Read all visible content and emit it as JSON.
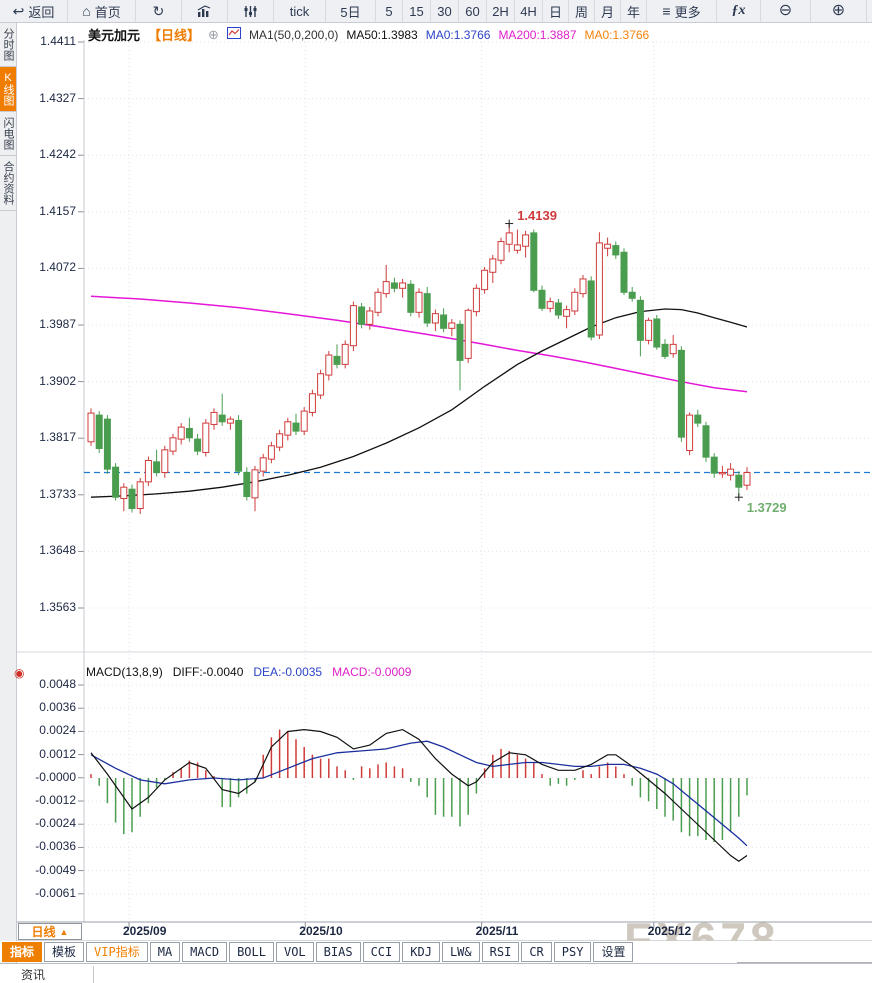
{
  "icons": {
    "add": "⊕",
    "up_triangle": "▲",
    "indicator_dot": "◉",
    "back": "↩",
    "home": "⌂",
    "refresh": "↻",
    "menu": "≡",
    "zoom_out": "⊖",
    "zoom_in": "⊕"
  },
  "toolbar": {
    "items": [
      {
        "id": "back",
        "icon": "back",
        "label": "返回"
      },
      {
        "id": "home",
        "icon": "home",
        "label": "首页"
      },
      {
        "id": "refresh",
        "icon": "refresh",
        "label": ""
      },
      {
        "id": "chart-style",
        "icon": "bar-chart",
        "label": ""
      },
      {
        "id": "indicators",
        "icon": "sliders",
        "label": ""
      },
      {
        "id": "tf-tick",
        "label": "tick"
      },
      {
        "id": "tf-5d",
        "label": "5日"
      },
      {
        "id": "tf-5",
        "label": "5"
      },
      {
        "id": "tf-15",
        "label": "15"
      },
      {
        "id": "tf-30",
        "label": "30"
      },
      {
        "id": "tf-60",
        "label": "60"
      },
      {
        "id": "tf-2h",
        "label": "2H"
      },
      {
        "id": "tf-4h",
        "label": "4H"
      },
      {
        "id": "tf-day",
        "label": "日"
      },
      {
        "id": "tf-week",
        "label": "周"
      },
      {
        "id": "tf-month",
        "label": "月"
      },
      {
        "id": "tf-year",
        "label": "年"
      },
      {
        "id": "more",
        "icon": "menu",
        "label": "更多"
      },
      {
        "id": "fx",
        "label": "ƒx"
      },
      {
        "id": "zoom-out",
        "icon": "zoom_out",
        "label": ""
      },
      {
        "id": "zoom-in",
        "icon": "zoom_in",
        "label": ""
      }
    ]
  },
  "sidebar": {
    "items": [
      {
        "id": "fenshi",
        "label": "分时图",
        "active": false
      },
      {
        "id": "kline",
        "label": "K线图",
        "active": true
      },
      {
        "id": "shandian",
        "label": "闪电图",
        "active": false
      },
      {
        "id": "heyue",
        "label": "合约资料",
        "active": false
      }
    ]
  },
  "chart_header": {
    "symbol": "美元加元",
    "period": "【日线】",
    "ma_settings": "MA1(50,0,200,0)",
    "ma50": "MA50:1.3983",
    "ma0_blue": "MA0:1.3766",
    "ma200": "MA200:1.3887",
    "ma0_orange": "MA0:1.3766"
  },
  "macd_header": {
    "title": "MACD(13,8,9)",
    "diff": "DIFF:-0.0040",
    "dea": "DEA:-0.0035",
    "macd": "MACD:-0.0009"
  },
  "bottom": {
    "period_selector": "日线",
    "months": [
      "2025/09",
      "2025/10",
      "2025/11",
      "2025/12"
    ],
    "tabs": [
      {
        "id": "zhibiao",
        "label": "指标",
        "active": true
      },
      {
        "id": "moban",
        "label": "模板"
      },
      {
        "id": "vip",
        "label": "VIP指标",
        "vip": true
      },
      {
        "id": "ma",
        "label": "MA"
      },
      {
        "id": "macd",
        "label": "MACD"
      },
      {
        "id": "boll",
        "label": "BOLL"
      },
      {
        "id": "vol",
        "label": "VOL"
      },
      {
        "id": "bias",
        "label": "BIAS"
      },
      {
        "id": "cci",
        "label": "CCI"
      },
      {
        "id": "kdj",
        "label": "KDJ"
      },
      {
        "id": "lw",
        "label": "LW&"
      },
      {
        "id": "rsi",
        "label": "RSI"
      },
      {
        "id": "cr",
        "label": "CR"
      },
      {
        "id": "psy",
        "label": "PSY"
      },
      {
        "id": "shezhi",
        "label": "设置"
      }
    ],
    "news_tab": "资讯"
  },
  "watermark": "FX678",
  "colors": {
    "candle_up": "#cf3b3b",
    "candle_down": "#4a9d4f",
    "ma50_line": "#111111",
    "ma200_line": "#e416d8",
    "diff_line": "#111111",
    "dea_line": "#1b2f9e",
    "price_line": "#1f7ad4",
    "accent_orange": "#f07c00",
    "annotation_high": "#cf3b3b",
    "annotation_low": "#6fae6f"
  },
  "chart_data": {
    "type": "candlestick",
    "title": "美元加元 日线 (USD/CAD daily)",
    "price_axis_labels": [
      "1.4411",
      "1.4327",
      "1.4242",
      "1.4157",
      "1.4072",
      "1.3987",
      "1.3902",
      "1.3817",
      "1.3733",
      "1.3648",
      "1.3563"
    ],
    "macd_axis_labels": [
      "0.0048",
      "0.0036",
      "0.0024",
      "0.0012",
      "-0.0000",
      "-0.0012",
      "-0.0024",
      "-0.0036",
      "-0.0049",
      "-0.0061"
    ],
    "x_months": [
      "2025/09",
      "2025/10",
      "2025/11",
      "2025/12"
    ],
    "month_start_indices": [
      5,
      26.5,
      48,
      69
    ],
    "current_price": 1.3766,
    "high_annotation": {
      "index": 51,
      "price": 1.4139,
      "label": "1.4139"
    },
    "low_annotation": {
      "index": 79,
      "price": 1.3729,
      "label": "1.3729"
    },
    "candles": [
      [
        1.3812,
        1.3862,
        1.3806,
        1.3855
      ],
      [
        1.3852,
        1.3858,
        1.3795,
        1.3802
      ],
      [
        1.3846,
        1.3852,
        1.3764,
        1.3771
      ],
      [
        1.3774,
        1.378,
        1.3724,
        1.3729
      ],
      [
        1.3727,
        1.375,
        1.3708,
        1.3744
      ],
      [
        1.3741,
        1.3748,
        1.3706,
        1.3712
      ],
      [
        1.3712,
        1.3758,
        1.3704,
        1.3752
      ],
      [
        1.3752,
        1.379,
        1.3746,
        1.3784
      ],
      [
        1.3782,
        1.38,
        1.376,
        1.3766
      ],
      [
        1.3766,
        1.3806,
        1.3758,
        1.38
      ],
      [
        1.3798,
        1.3824,
        1.3792,
        1.3818
      ],
      [
        1.3816,
        1.384,
        1.3808,
        1.3834
      ],
      [
        1.3832,
        1.3848,
        1.3812,
        1.3818
      ],
      [
        1.3816,
        1.3824,
        1.3792,
        1.3798
      ],
      [
        1.3796,
        1.3846,
        1.379,
        1.384
      ],
      [
        1.3838,
        1.3862,
        1.383,
        1.3856
      ],
      [
        1.3852,
        1.3884,
        1.3836,
        1.3842
      ],
      [
        1.384,
        1.385,
        1.383,
        1.3846
      ],
      [
        1.3844,
        1.3852,
        1.3762,
        1.3768
      ],
      [
        1.3766,
        1.3774,
        1.3724,
        1.373
      ],
      [
        1.3728,
        1.3776,
        1.3708,
        1.377
      ],
      [
        1.3768,
        1.3794,
        1.376,
        1.3788
      ],
      [
        1.3786,
        1.3812,
        1.378,
        1.3806
      ],
      [
        1.3804,
        1.383,
        1.3798,
        1.3824
      ],
      [
        1.3822,
        1.3848,
        1.3814,
        1.3842
      ],
      [
        1.384,
        1.3854,
        1.3822,
        1.3828
      ],
      [
        1.3828,
        1.3864,
        1.3822,
        1.3858
      ],
      [
        1.3856,
        1.389,
        1.385,
        1.3884
      ],
      [
        1.3882,
        1.392,
        1.3876,
        1.3914
      ],
      [
        1.3912,
        1.3948,
        1.3904,
        1.3942
      ],
      [
        1.394,
        1.3958,
        1.3922,
        1.3928
      ],
      [
        1.3928,
        1.3964,
        1.3922,
        1.3958
      ],
      [
        1.3956,
        1.4022,
        1.3948,
        1.4016
      ],
      [
        1.4014,
        1.402,
        1.3982,
        1.3988
      ],
      [
        1.3988,
        1.4014,
        1.398,
        1.4008
      ],
      [
        1.4006,
        1.4042,
        1.4,
        1.4036
      ],
      [
        1.4034,
        1.4077,
        1.4028,
        1.4052
      ],
      [
        1.405,
        1.4058,
        1.4036,
        1.4042
      ],
      [
        1.4042,
        1.4056,
        1.4028,
        1.405
      ],
      [
        1.4048,
        1.4054,
        1.4,
        1.4006
      ],
      [
        1.4006,
        1.4042,
        1.3998,
        1.4036
      ],
      [
        1.4034,
        1.4044,
        1.3984,
        1.399
      ],
      [
        1.399,
        1.401,
        1.3978,
        1.4004
      ],
      [
        1.4002,
        1.4012,
        1.3976,
        1.3982
      ],
      [
        1.3982,
        1.3996,
        1.397,
        1.399
      ],
      [
        1.3988,
        1.3994,
        1.3889,
        1.3934
      ],
      [
        1.3937,
        1.4012,
        1.393,
        1.4009
      ],
      [
        1.4007,
        1.4048,
        1.4,
        1.4042
      ],
      [
        1.404,
        1.4074,
        1.4034,
        1.4069
      ],
      [
        1.4066,
        1.4092,
        1.405,
        1.4086
      ],
      [
        1.4084,
        1.4118,
        1.4078,
        1.4112
      ],
      [
        1.4108,
        1.4139,
        1.4096,
        1.4125
      ],
      [
        1.4099,
        1.413,
        1.4094,
        1.4107
      ],
      [
        1.4105,
        1.4128,
        1.4088,
        1.4122
      ],
      [
        1.4125,
        1.413,
        1.4036,
        1.4039
      ],
      [
        1.4039,
        1.4046,
        1.4008,
        1.4012
      ],
      [
        1.4012,
        1.4028,
        1.4006,
        1.4022
      ],
      [
        1.402,
        1.4026,
        1.3996,
        1.4002
      ],
      [
        1.4,
        1.4016,
        1.3982,
        1.401
      ],
      [
        1.4008,
        1.4042,
        1.4002,
        1.4036
      ],
      [
        1.4034,
        1.4062,
        1.4028,
        1.4056
      ],
      [
        1.4053,
        1.406,
        1.3964,
        1.3969
      ],
      [
        1.3972,
        1.4126,
        1.3966,
        1.411
      ],
      [
        1.4102,
        1.4118,
        1.409,
        1.4108
      ],
      [
        1.4106,
        1.4112,
        1.4086,
        1.4092
      ],
      [
        1.4096,
        1.4102,
        1.4032,
        1.4036
      ],
      [
        1.4036,
        1.4044,
        1.4022,
        1.4027
      ],
      [
        1.4024,
        1.403,
        1.394,
        1.3964
      ],
      [
        1.3964,
        1.3998,
        1.3958,
        1.3994
      ],
      [
        1.3996,
        1.4002,
        1.395,
        1.3954
      ],
      [
        1.3958,
        1.3966,
        1.3936,
        1.394
      ],
      [
        1.3944,
        1.3972,
        1.3938,
        1.3958
      ],
      [
        1.3949,
        1.3955,
        1.3812,
        1.3819
      ],
      [
        1.3799,
        1.3856,
        1.3792,
        1.3852
      ],
      [
        1.3852,
        1.386,
        1.3834,
        1.384
      ],
      [
        1.3836,
        1.3842,
        1.3782,
        1.3789
      ],
      [
        1.3789,
        1.3795,
        1.3758,
        1.3765
      ],
      [
        1.3764,
        1.3776,
        1.3758,
        1.3766
      ],
      [
        1.3762,
        1.378,
        1.3754,
        1.3771
      ],
      [
        1.3762,
        1.3768,
        1.3729,
        1.3744
      ],
      [
        1.3747,
        1.3774,
        1.374,
        1.3766
      ]
    ],
    "ma50": [
      [
        0,
        1.3729
      ],
      [
        4,
        1.3731
      ],
      [
        8,
        1.3734
      ],
      [
        12,
        1.3738
      ],
      [
        16,
        1.3744
      ],
      [
        20,
        1.3752
      ],
      [
        24,
        1.3762
      ],
      [
        28,
        1.3774
      ],
      [
        32,
        1.379
      ],
      [
        36,
        1.381
      ],
      [
        40,
        1.3833
      ],
      [
        44,
        1.386
      ],
      [
        48,
        1.3895
      ],
      [
        52,
        1.3928
      ],
      [
        55,
        1.3948
      ],
      [
        58,
        1.3966
      ],
      [
        61,
        1.3984
      ],
      [
        64,
        1.3998
      ],
      [
        67,
        1.4007
      ],
      [
        70,
        1.4011
      ],
      [
        72,
        1.401
      ],
      [
        74,
        1.4005
      ],
      [
        76,
        1.3998
      ],
      [
        78,
        1.3991
      ],
      [
        80,
        1.3984
      ]
    ],
    "ma200": [
      [
        0,
        1.403
      ],
      [
        6,
        1.4026
      ],
      [
        12,
        1.402
      ],
      [
        18,
        1.4013
      ],
      [
        24,
        1.4004
      ],
      [
        30,
        1.3994
      ],
      [
        36,
        1.3983
      ],
      [
        42,
        1.3971
      ],
      [
        48,
        1.3958
      ],
      [
        52,
        1.3949
      ],
      [
        56,
        1.3941
      ],
      [
        60,
        1.3932
      ],
      [
        64,
        1.3922
      ],
      [
        68,
        1.3912
      ],
      [
        72,
        1.3902
      ],
      [
        76,
        1.3893
      ],
      [
        80,
        1.3887
      ]
    ],
    "macd": {
      "histogram": [
        0.0002,
        -0.0004,
        -0.0013,
        -0.0023,
        -0.0029,
        -0.0028,
        -0.002,
        -0.0013,
        -0.0005,
        -0.0001,
        0.0003,
        0.0005,
        0.0009,
        0.0008,
        0.0004,
        0.0001,
        -0.0015,
        -0.0015,
        -0.001,
        -0.0008,
        -0.0002,
        0.0012,
        0.0021,
        0.0025,
        0.0024,
        0.002,
        0.0016,
        0.0012,
        0.001,
        0.001,
        0.0006,
        0.0004,
        -0.0001,
        0.0006,
        0.0005,
        0.0007,
        0.0008,
        0.0006,
        0.0005,
        -0.0002,
        -0.0004,
        -0.001,
        -0.0019,
        -0.002,
        -0.002,
        -0.0025,
        -0.0019,
        -0.0008,
        0.0005,
        0.0012,
        0.0015,
        0.0014,
        0.0012,
        0.001,
        0.0008,
        0.0002,
        -0.0004,
        -0.0003,
        -0.0004,
        -0.0001,
        0.0004,
        0.0002,
        0.0006,
        0.0008,
        0.0006,
        0.0002,
        -0.0004,
        -0.001,
        -0.0012,
        -0.0016,
        -0.002,
        -0.0022,
        -0.0028,
        -0.003,
        -0.003,
        -0.0032,
        -0.0033,
        -0.0032,
        -0.0028,
        -0.002,
        -0.0009
      ],
      "diff": [
        [
          0,
          0.0013
        ],
        [
          2,
          0.0002
        ],
        [
          5,
          -0.0016
        ],
        [
          7,
          -0.001
        ],
        [
          9,
          -0.0001
        ],
        [
          12,
          0.0008
        ],
        [
          14,
          0.0005
        ],
        [
          16,
          -0.0006
        ],
        [
          18,
          -0.0008
        ],
        [
          20,
          -0.0002
        ],
        [
          22,
          0.0016
        ],
        [
          24,
          0.0024
        ],
        [
          26,
          0.0025
        ],
        [
          28,
          0.0024
        ],
        [
          30,
          0.0021
        ],
        [
          32,
          0.0015
        ],
        [
          34,
          0.0017
        ],
        [
          36,
          0.0023
        ],
        [
          38,
          0.0025
        ],
        [
          40,
          0.002
        ],
        [
          42,
          0.001
        ],
        [
          44,
          0.0002
        ],
        [
          46,
          -0.0004
        ],
        [
          47,
          -0.0002
        ],
        [
          49,
          0.0008
        ],
        [
          51,
          0.0013
        ],
        [
          53,
          0.0012
        ],
        [
          55,
          0.0007
        ],
        [
          57,
          0.0004
        ],
        [
          59,
          0.0004
        ],
        [
          61,
          0.0007
        ],
        [
          63,
          0.0012
        ],
        [
          64,
          0.0012
        ],
        [
          66,
          0.0006
        ],
        [
          68,
          -0.0001
        ],
        [
          70,
          -0.0008
        ],
        [
          72,
          -0.0016
        ],
        [
          74,
          -0.0024
        ],
        [
          76,
          -0.0032
        ],
        [
          78,
          -0.004
        ],
        [
          79,
          -0.0043
        ],
        [
          80,
          -0.004
        ]
      ],
      "dea": [
        [
          0,
          0.0012
        ],
        [
          3,
          0.0005
        ],
        [
          6,
          -0.0001
        ],
        [
          9,
          -0.0003
        ],
        [
          12,
          -0.0001
        ],
        [
          15,
          0.0
        ],
        [
          18,
          -0.0001
        ],
        [
          21,
          0.0
        ],
        [
          24,
          0.0005
        ],
        [
          27,
          0.001
        ],
        [
          30,
          0.0013
        ],
        [
          33,
          0.0014
        ],
        [
          36,
          0.0015
        ],
        [
          39,
          0.0018
        ],
        [
          41,
          0.0019
        ],
        [
          43,
          0.0016
        ],
        [
          45,
          0.0012
        ],
        [
          47,
          0.0008
        ],
        [
          49,
          0.0006
        ],
        [
          51,
          0.0007
        ],
        [
          53,
          0.0008
        ],
        [
          55,
          0.0008
        ],
        [
          57,
          0.0007
        ],
        [
          59,
          0.0006
        ],
        [
          61,
          0.0006
        ],
        [
          63,
          0.0007
        ],
        [
          65,
          0.0007
        ],
        [
          67,
          0.0005
        ],
        [
          69,
          0.0002
        ],
        [
          71,
          -0.0003
        ],
        [
          73,
          -0.001
        ],
        [
          75,
          -0.0017
        ],
        [
          77,
          -0.0024
        ],
        [
          79,
          -0.0031
        ],
        [
          80,
          -0.0035
        ]
      ]
    }
  }
}
